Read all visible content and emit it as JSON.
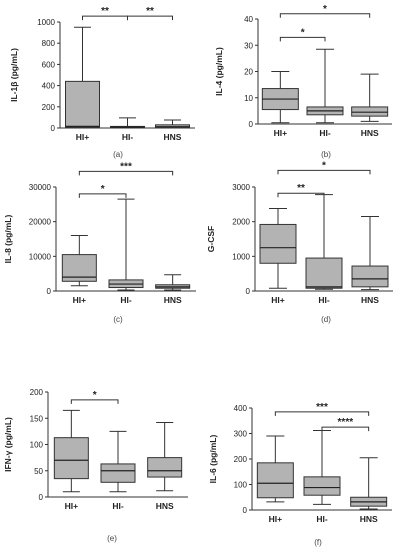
{
  "chart_data": [
    {
      "type": "box",
      "panel_label": "(a)",
      "ylabel": "IL-1β (pg/mL)",
      "ylim": [
        0,
        1000
      ],
      "yticks": [
        0,
        200,
        400,
        600,
        800,
        1000
      ],
      "categories": [
        "HI+",
        "HI-",
        "HNS"
      ],
      "boxes": [
        {
          "min": 0,
          "q1": 5,
          "median": 15,
          "q3": 440,
          "max": 950
        },
        {
          "min": 0,
          "q1": 3,
          "median": 8,
          "q3": 15,
          "max": 95
        },
        {
          "min": 0,
          "q1": 3,
          "median": 12,
          "q3": 30,
          "max": 75
        }
      ],
      "significance": [
        {
          "from": 0,
          "to": 1,
          "label": "**",
          "y": 1055
        },
        {
          "from": 1,
          "to": 2,
          "label": "**",
          "y": 1055
        }
      ]
    },
    {
      "type": "box",
      "panel_label": "(b)",
      "ylabel": "IL-4 (pg/mL)",
      "ylim": [
        0,
        40
      ],
      "yticks": [
        0,
        10,
        20,
        30,
        40
      ],
      "categories": [
        "HI+",
        "HI-",
        "HNS"
      ],
      "boxes": [
        {
          "min": 0.5,
          "q1": 5.5,
          "median": 9.5,
          "q3": 13.5,
          "max": 20
        },
        {
          "min": 0.5,
          "q1": 3.5,
          "median": 5,
          "q3": 6.5,
          "max": 28.5
        },
        {
          "min": 1,
          "q1": 3,
          "median": 4.5,
          "q3": 6.5,
          "max": 19
        }
      ],
      "significance": [
        {
          "from": 0,
          "to": 1,
          "label": "*",
          "y": 33
        },
        {
          "from": 0,
          "to": 2,
          "label": "*",
          "y": 42
        }
      ]
    },
    {
      "type": "box",
      "panel_label": "(c)",
      "ylabel": "IL-8 (pg/mL)",
      "ylim": [
        0,
        30000
      ],
      "yticks": [
        0,
        10000,
        20000,
        30000
      ],
      "categories": [
        "HI+",
        "HI-",
        "HNS"
      ],
      "boxes": [
        {
          "min": 1500,
          "q1": 2800,
          "median": 4000,
          "q3": 10500,
          "max": 16000
        },
        {
          "min": 300,
          "q1": 1000,
          "median": 2000,
          "q3": 3200,
          "max": 26500
        },
        {
          "min": 300,
          "q1": 800,
          "median": 1200,
          "q3": 1800,
          "max": 4700
        }
      ],
      "significance": [
        {
          "from": 0,
          "to": 1,
          "label": "*",
          "y": 28000
        },
        {
          "from": 0,
          "to": 2,
          "label": "***",
          "y": 34500
        }
      ]
    },
    {
      "type": "box",
      "panel_label": "(d)",
      "ylabel": "G-CSF",
      "ylim": [
        0,
        3000
      ],
      "yticks": [
        0,
        1000,
        2000,
        3000
      ],
      "categories": [
        "HI+",
        "HI-",
        "HNS"
      ],
      "boxes": [
        {
          "min": 80,
          "q1": 800,
          "median": 1250,
          "q3": 1920,
          "max": 2380
        },
        {
          "min": 50,
          "q1": 80,
          "median": 120,
          "q3": 950,
          "max": 2780
        },
        {
          "min": 40,
          "q1": 120,
          "median": 350,
          "q3": 720,
          "max": 2150
        }
      ],
      "significance": [
        {
          "from": 0,
          "to": 1,
          "label": "**",
          "y": 2820
        },
        {
          "from": 0,
          "to": 2,
          "label": "*",
          "y": 3480
        }
      ]
    },
    {
      "type": "box",
      "panel_label": "(e)",
      "ylabel": "IFN-γ (pg/mL)",
      "ylim": [
        0,
        200
      ],
      "yticks": [
        0,
        50,
        100,
        150,
        200
      ],
      "categories": [
        "HI+",
        "HI-",
        "HNS"
      ],
      "boxes": [
        {
          "min": 10,
          "q1": 35,
          "median": 70,
          "q3": 113,
          "max": 165
        },
        {
          "min": 10,
          "q1": 28,
          "median": 50,
          "q3": 63,
          "max": 125
        },
        {
          "min": 12,
          "q1": 38,
          "median": 50,
          "q3": 75,
          "max": 142
        }
      ],
      "significance": [
        {
          "from": 0,
          "to": 1,
          "label": "*",
          "y": 185
        }
      ]
    },
    {
      "type": "box",
      "panel_label": "(f)",
      "ylabel": "IL-6 (pg/mL)",
      "ylim": [
        0,
        400
      ],
      "yticks": [
        0,
        100,
        200,
        300,
        400
      ],
      "categories": [
        "HI+",
        "HI-",
        "HNS"
      ],
      "boxes": [
        {
          "min": 32,
          "q1": 48,
          "median": 105,
          "q3": 185,
          "max": 290
        },
        {
          "min": 22,
          "q1": 58,
          "median": 88,
          "q3": 130,
          "max": 312
        },
        {
          "min": 4,
          "q1": 15,
          "median": 32,
          "q3": 50,
          "max": 205
        }
      ],
      "significance": [
        {
          "from": 0,
          "to": 2,
          "label": "***",
          "y": 385
        },
        {
          "from": 1,
          "to": 2,
          "label": "****",
          "y": 325
        }
      ]
    }
  ]
}
